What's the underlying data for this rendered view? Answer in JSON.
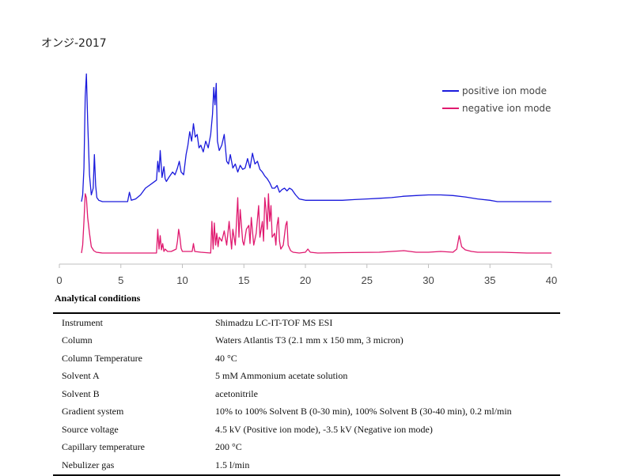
{
  "title": "オンジ-2017",
  "chart_data": {
    "type": "line",
    "title": "オンジ-2017",
    "xlabel": "",
    "ylabel": "",
    "xlim": [
      0,
      40
    ],
    "x_ticks": [
      0,
      5,
      10,
      15,
      20,
      25,
      30,
      35,
      40
    ],
    "grid": false,
    "legend_position": "top-right",
    "series": [
      {
        "name": "positive ion mode",
        "color": "#1a1adc",
        "x": [
          1.8,
          1.9,
          2.0,
          2.1,
          2.2,
          2.3,
          2.45,
          2.6,
          2.75,
          2.85,
          2.95,
          3.05,
          3.2,
          3.5,
          4.0,
          5.0,
          5.55,
          5.7,
          5.85,
          6.2,
          6.6,
          7.0,
          7.3,
          7.6,
          7.9,
          8.0,
          8.1,
          8.2,
          8.35,
          8.5,
          8.6,
          8.7,
          8.9,
          9.2,
          9.4,
          9.6,
          9.75,
          9.9,
          10.1,
          10.3,
          10.45,
          10.6,
          10.75,
          10.9,
          11.05,
          11.2,
          11.35,
          11.5,
          11.7,
          11.9,
          12.1,
          12.3,
          12.45,
          12.55,
          12.65,
          12.75,
          12.85,
          13.0,
          13.2,
          13.4,
          13.6,
          13.75,
          13.9,
          14.1,
          14.3,
          14.5,
          14.7,
          14.9,
          15.1,
          15.3,
          15.5,
          15.7,
          15.9,
          16.1,
          16.3,
          16.5,
          16.7,
          16.9,
          17.1,
          17.3,
          17.5,
          17.7,
          17.9,
          18.1,
          18.3,
          18.5,
          18.7,
          18.9,
          19.2,
          19.5,
          20.0,
          21.0,
          22.0,
          23.0,
          24.0,
          25.0,
          26.0,
          27.0,
          28.0,
          29.0,
          30.0,
          31.0,
          32.0,
          33.0,
          34.0,
          35.0,
          35.6,
          36.0,
          37.0,
          38.0,
          39.0,
          40.0
        ],
        "y": [
          0.0,
          0.05,
          0.25,
          0.78,
          0.95,
          0.6,
          0.2,
          0.05,
          0.1,
          0.35,
          0.12,
          0.03,
          0.01,
          0.0,
          0.0,
          0.0,
          0.0,
          0.07,
          0.01,
          0.02,
          0.05,
          0.1,
          0.12,
          0.14,
          0.16,
          0.3,
          0.22,
          0.38,
          0.18,
          0.26,
          0.17,
          0.15,
          0.18,
          0.22,
          0.2,
          0.25,
          0.3,
          0.22,
          0.2,
          0.35,
          0.42,
          0.52,
          0.45,
          0.58,
          0.48,
          0.5,
          0.4,
          0.42,
          0.37,
          0.45,
          0.4,
          0.5,
          0.65,
          0.85,
          0.72,
          0.88,
          0.45,
          0.38,
          0.42,
          0.5,
          0.3,
          0.28,
          0.35,
          0.25,
          0.28,
          0.22,
          0.27,
          0.24,
          0.25,
          0.32,
          0.25,
          0.36,
          0.28,
          0.3,
          0.24,
          0.22,
          0.19,
          0.17,
          0.14,
          0.1,
          0.1,
          0.12,
          0.07,
          0.09,
          0.1,
          0.08,
          0.1,
          0.09,
          0.05,
          0.02,
          0.01,
          0.01,
          0.01,
          0.01,
          0.015,
          0.02,
          0.025,
          0.03,
          0.04,
          0.045,
          0.05,
          0.05,
          0.045,
          0.035,
          0.02,
          0.01,
          0.0,
          0.0,
          0.0,
          0.0,
          0.0,
          0.0
        ]
      },
      {
        "name": "negative ion mode",
        "color": "#e0196f",
        "x": [
          1.8,
          1.9,
          2.0,
          2.1,
          2.2,
          2.3,
          2.45,
          2.6,
          2.8,
          3.0,
          3.5,
          5.0,
          6.0,
          7.9,
          8.0,
          8.1,
          8.2,
          8.3,
          8.4,
          8.5,
          8.6,
          8.8,
          9.1,
          9.5,
          9.6,
          9.7,
          9.8,
          9.9,
          10.0,
          10.5,
          10.8,
          10.9,
          11.0,
          11.5,
          12.3,
          12.4,
          12.5,
          12.6,
          12.7,
          12.8,
          12.9,
          13.0,
          13.2,
          13.4,
          13.6,
          13.8,
          14.0,
          14.1,
          14.3,
          14.5,
          14.6,
          14.7,
          14.9,
          15.0,
          15.2,
          15.4,
          15.5,
          15.6,
          15.8,
          16.0,
          16.2,
          16.3,
          16.5,
          16.6,
          16.7,
          16.8,
          16.9,
          17.0,
          17.1,
          17.2,
          17.3,
          17.5,
          17.6,
          17.7,
          17.8,
          17.9,
          18.0,
          18.2,
          18.4,
          18.5,
          18.6,
          18.8,
          19.0,
          19.5,
          20.0,
          20.2,
          20.4,
          21.0,
          23.0,
          26.0,
          28.0,
          29.0,
          30.0,
          31.0,
          32.0,
          32.3,
          32.5,
          32.7,
          33.0,
          33.5,
          34.0,
          36.0,
          38.0,
          40.0
        ],
        "y": [
          0.0,
          0.1,
          0.4,
          0.75,
          0.7,
          0.45,
          0.25,
          0.08,
          0.03,
          0.01,
          0.0,
          0.0,
          0.0,
          0.0,
          0.3,
          0.05,
          0.22,
          0.04,
          0.12,
          0.02,
          0.05,
          0.02,
          0.02,
          0.05,
          0.15,
          0.3,
          0.2,
          0.06,
          0.02,
          0.02,
          0.02,
          0.12,
          0.02,
          0.01,
          0.0,
          0.4,
          0.05,
          0.38,
          0.1,
          0.25,
          0.08,
          0.2,
          0.15,
          0.28,
          0.1,
          0.4,
          0.05,
          0.3,
          0.1,
          0.7,
          0.2,
          0.55,
          0.15,
          0.1,
          0.3,
          0.35,
          0.12,
          0.45,
          0.1,
          0.25,
          0.6,
          0.2,
          0.4,
          0.15,
          0.7,
          0.55,
          0.3,
          0.75,
          0.4,
          0.6,
          0.2,
          0.25,
          0.1,
          0.35,
          0.45,
          0.15,
          0.05,
          0.1,
          0.35,
          0.4,
          0.1,
          0.03,
          0.01,
          0.0,
          0.01,
          0.05,
          0.01,
          0.0,
          0.005,
          0.01,
          0.03,
          0.01,
          0.01,
          0.02,
          0.01,
          0.05,
          0.22,
          0.08,
          0.04,
          0.02,
          0.01,
          0.01,
          0.0,
          0.0
        ]
      }
    ]
  },
  "conditions": {
    "title": "Analytical conditions",
    "rows": [
      {
        "key": "Instrument",
        "value": "Shimadzu LC-IT-TOF MS ESI"
      },
      {
        "key": "Column",
        "value": "Waters Atlantis T3 (2.1 mm x 150 mm, 3 micron)"
      },
      {
        "key": "Column Temperature",
        "value": "40 °C"
      },
      {
        "key": "Solvent A",
        "value": "5 mM Ammonium acetate solution"
      },
      {
        "key": "Solvent B",
        "value": "acetonitrile"
      },
      {
        "key": "Gradient system",
        "value": "10% to 100% Solvent B (0-30 min), 100% Solvent B (30-40 min), 0.2 ml/min"
      },
      {
        "key": "Source voltage",
        "value": "4.5 kV (Positive ion mode), -3.5 kV (Negative ion mode)"
      },
      {
        "key": "Capillary temperature",
        "value": "200 °C"
      },
      {
        "key": "Nebulizer gas",
        "value": "1.5 l/min"
      }
    ]
  }
}
